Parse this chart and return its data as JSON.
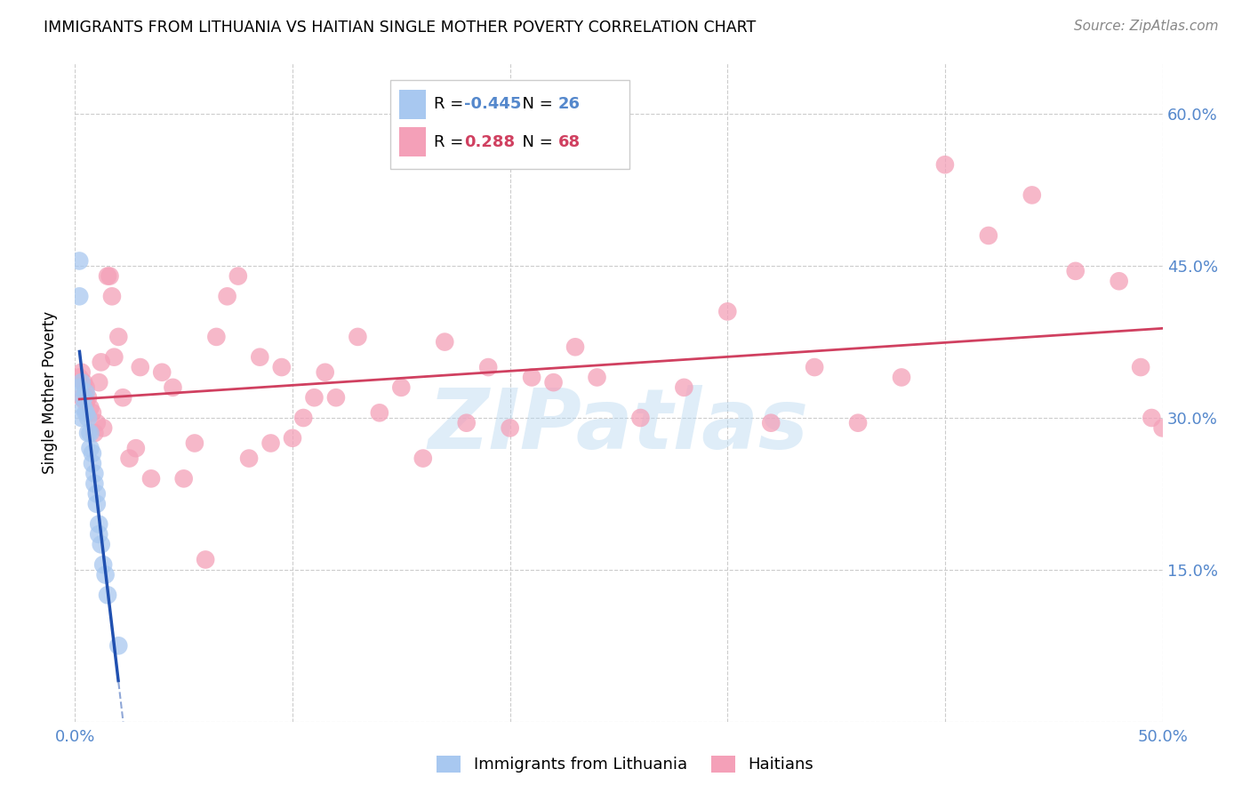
{
  "title": "IMMIGRANTS FROM LITHUANIA VS HAITIAN SINGLE MOTHER POVERTY CORRELATION CHART",
  "source": "Source: ZipAtlas.com",
  "ylabel": "Single Mother Poverty",
  "color_blue": "#A8C8F0",
  "color_pink": "#F4A0B8",
  "color_blue_line": "#2050B0",
  "color_pink_line": "#D04060",
  "color_axis_text": "#5588CC",
  "watermark": "ZIPatlas",
  "xmin": 0.0,
  "xmax": 0.5,
  "ymin": 0.0,
  "ymax": 0.65,
  "lithuania_x": [
    0.002,
    0.002,
    0.002,
    0.003,
    0.003,
    0.004,
    0.004,
    0.005,
    0.005,
    0.006,
    0.006,
    0.007,
    0.007,
    0.008,
    0.008,
    0.009,
    0.009,
    0.01,
    0.01,
    0.011,
    0.011,
    0.012,
    0.013,
    0.014,
    0.015,
    0.02
  ],
  "lithuania_y": [
    0.455,
    0.42,
    0.33,
    0.335,
    0.3,
    0.32,
    0.31,
    0.325,
    0.305,
    0.3,
    0.285,
    0.285,
    0.27,
    0.265,
    0.255,
    0.245,
    0.235,
    0.225,
    0.215,
    0.195,
    0.185,
    0.175,
    0.155,
    0.145,
    0.125,
    0.075
  ],
  "haitian_x": [
    0.002,
    0.003,
    0.003,
    0.004,
    0.005,
    0.005,
    0.006,
    0.007,
    0.008,
    0.009,
    0.01,
    0.011,
    0.012,
    0.013,
    0.015,
    0.016,
    0.017,
    0.018,
    0.02,
    0.022,
    0.025,
    0.028,
    0.03,
    0.035,
    0.04,
    0.045,
    0.05,
    0.055,
    0.06,
    0.065,
    0.07,
    0.075,
    0.08,
    0.085,
    0.09,
    0.095,
    0.1,
    0.105,
    0.11,
    0.115,
    0.12,
    0.13,
    0.14,
    0.15,
    0.16,
    0.17,
    0.18,
    0.19,
    0.2,
    0.21,
    0.22,
    0.23,
    0.24,
    0.26,
    0.28,
    0.3,
    0.32,
    0.34,
    0.36,
    0.38,
    0.4,
    0.42,
    0.44,
    0.46,
    0.48,
    0.49,
    0.495,
    0.5
  ],
  "haitian_y": [
    0.34,
    0.345,
    0.32,
    0.335,
    0.33,
    0.315,
    0.32,
    0.31,
    0.305,
    0.285,
    0.295,
    0.335,
    0.355,
    0.29,
    0.44,
    0.44,
    0.42,
    0.36,
    0.38,
    0.32,
    0.26,
    0.27,
    0.35,
    0.24,
    0.345,
    0.33,
    0.24,
    0.275,
    0.16,
    0.38,
    0.42,
    0.44,
    0.26,
    0.36,
    0.275,
    0.35,
    0.28,
    0.3,
    0.32,
    0.345,
    0.32,
    0.38,
    0.305,
    0.33,
    0.26,
    0.375,
    0.295,
    0.35,
    0.29,
    0.34,
    0.335,
    0.37,
    0.34,
    0.3,
    0.33,
    0.405,
    0.295,
    0.35,
    0.295,
    0.34,
    0.55,
    0.48,
    0.52,
    0.445,
    0.435,
    0.35,
    0.3,
    0.29
  ]
}
